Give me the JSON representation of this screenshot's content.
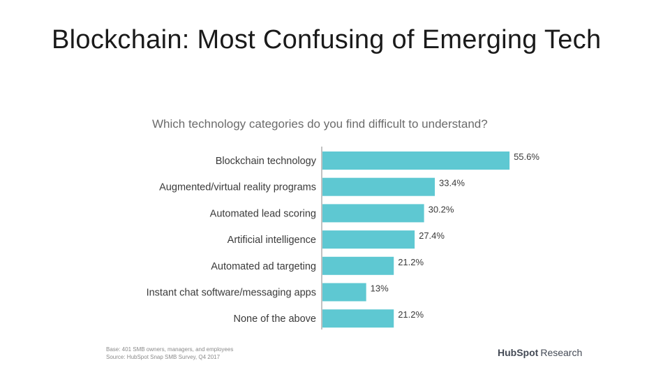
{
  "slide": {
    "title": "Blockchain: Most Confusing of Emerging Tech"
  },
  "footnotes": {
    "base": "Base: 401 SMB owners, managers, and employees",
    "source": "Source: HubSpot Snap SMB Survey, Q4 2017"
  },
  "brand": {
    "name": "HubSpot",
    "sub": "Research"
  },
  "colors": {
    "bar": "#5ec8d2",
    "label": "#3a3a3a",
    "axis": "#9a9a9a"
  },
  "chart_data": {
    "type": "bar",
    "orientation": "horizontal",
    "title": "Which technology categories do you find difficult to understand?",
    "categories": [
      "Blockchain technology",
      "Augmented/virtual reality programs",
      "Automated lead scoring",
      "Artificial intelligence",
      "Automated ad targeting",
      "Instant chat software/messaging apps",
      "None of the above"
    ],
    "values": [
      55.6,
      33.4,
      30.2,
      27.4,
      21.2,
      13,
      21.2
    ],
    "value_labels": [
      "55.6%",
      "33.4%",
      "30.2%",
      "27.4%",
      "21.2%",
      "13%",
      "21.2%"
    ],
    "unit": "%",
    "xlim": [
      0,
      56
    ],
    "grid": false,
    "legend": "none"
  }
}
